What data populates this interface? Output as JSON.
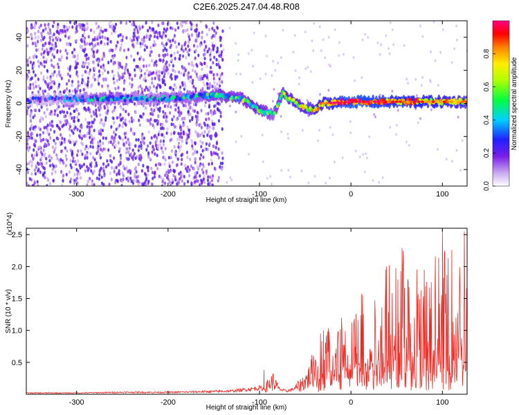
{
  "title": "C2E6.2025.247.04.48.R08",
  "colors": {
    "snr_line": "#ee2a24",
    "spectrogram_background": "#ffffff",
    "frame": "#000000"
  },
  "chart_data": [
    {
      "id": "spectrogram",
      "type": "heatmap",
      "xlabel": "Height of straight line (km)",
      "ylabel": "Frequency (Hz)",
      "xlim": [
        -355,
        127
      ],
      "ylim": [
        -50,
        50
      ],
      "xticks": [
        -300,
        -200,
        -100,
        0,
        100
      ],
      "yticks": [
        -40,
        -20,
        0,
        20,
        40
      ],
      "colorbar": {
        "label": "Normalized spectral amplitude",
        "range": [
          0,
          1
        ],
        "ticks": [
          0.0,
          0.2,
          0.4,
          0.6,
          0.8
        ],
        "tick_labels": [
          "0.0",
          "0.2",
          "0.4",
          "0.6",
          "0.8"
        ],
        "colormap": "rainbow (white to purple to blue to cyan to green to yellow to red to magenta)"
      },
      "noise_region": {
        "x_range": [
          -355,
          -140
        ],
        "freq_range": [
          -50,
          50
        ],
        "amplitude": [
          0.05,
          0.25
        ]
      },
      "signal_ridge": [
        {
          "x": -355,
          "freq": 2,
          "amplitude": 0.15
        },
        {
          "x": -300,
          "freq": 3,
          "amplitude": 0.25
        },
        {
          "x": -270,
          "freq": 3,
          "amplitude": 0.4
        },
        {
          "x": -230,
          "freq": 3,
          "amplitude": 0.3
        },
        {
          "x": -200,
          "freq": 3,
          "amplitude": 0.35
        },
        {
          "x": -150,
          "freq": 5,
          "amplitude": 0.45
        },
        {
          "x": -120,
          "freq": 3,
          "amplitude": 0.5
        },
        {
          "x": -100,
          "freq": -4,
          "amplitude": 0.55
        },
        {
          "x": -85,
          "freq": -7,
          "amplitude": 0.4
        },
        {
          "x": -75,
          "freq": 6,
          "amplitude": 0.6
        },
        {
          "x": -55,
          "freq": -2,
          "amplitude": 0.6
        },
        {
          "x": -40,
          "freq": -4,
          "amplitude": 0.7
        },
        {
          "x": -30,
          "freq": 0,
          "amplitude": 0.75
        },
        {
          "x": 0,
          "freq": 1,
          "amplitude": 0.9
        },
        {
          "x": 30,
          "freq": 1,
          "amplitude": 0.85
        },
        {
          "x": 60,
          "freq": 1,
          "amplitude": 0.8
        },
        {
          "x": 100,
          "freq": 1,
          "amplitude": 0.75
        },
        {
          "x": 127,
          "freq": 1,
          "amplitude": 0.7
        }
      ]
    },
    {
      "id": "snr",
      "type": "line",
      "xlabel": "Height of straight line (km)",
      "ylabel": "SNR (10 * v/v)",
      "y_multiplier": "(x10^4)",
      "xlim": [
        -355,
        127
      ],
      "ylim": [
        0,
        2.6
      ],
      "xticks": [
        -300,
        -200,
        -100,
        0,
        100
      ],
      "yticks": [
        0.5,
        1.0,
        1.5,
        2.0,
        2.5
      ],
      "ytick_labels": [
        "0.5",
        "1.0",
        "1.5",
        "2.0",
        "2.5"
      ],
      "series": [
        {
          "name": "SNR",
          "x": [
            -355,
            -300,
            -250,
            -200,
            -160,
            -130,
            -110,
            -100,
            -95,
            -90,
            -85,
            -80,
            -75,
            -70,
            -65,
            -60,
            -55,
            -50,
            -45,
            -40,
            -35,
            -30,
            -25,
            -20,
            -15,
            -10,
            -5,
            0,
            5,
            10,
            15,
            20,
            25,
            30,
            35,
            40,
            45,
            50,
            55,
            60,
            65,
            70,
            75,
            80,
            85,
            90,
            95,
            100,
            105,
            110,
            115,
            120,
            127
          ],
          "values": [
            0.02,
            0.02,
            0.03,
            0.03,
            0.04,
            0.05,
            0.08,
            0.1,
            0.08,
            0.15,
            0.2,
            0.1,
            0.06,
            0.05,
            0.07,
            0.1,
            0.15,
            0.2,
            0.28,
            0.45,
            0.55,
            0.65,
            0.7,
            0.6,
            0.7,
            0.8,
            0.75,
            0.8,
            0.85,
            0.95,
            0.9,
            0.95,
            0.95,
            1.0,
            1.1,
            1.3,
            1.4,
            1.45,
            1.35,
            1.3,
            1.2,
            1.35,
            1.25,
            1.2,
            1.3,
            1.35,
            1.25,
            1.4,
            1.2,
            1.3,
            1.2,
            1.3,
            1.1
          ],
          "amplitude_spikes": [
            {
              "x": 100,
              "value": 2.6
            },
            {
              "x": 124,
              "value": 2.55
            },
            {
              "x": 38,
              "value": 1.95
            },
            {
              "x": -30,
              "value": 1.0
            },
            {
              "x": -95,
              "value": 0.38
            }
          ]
        }
      ]
    }
  ]
}
